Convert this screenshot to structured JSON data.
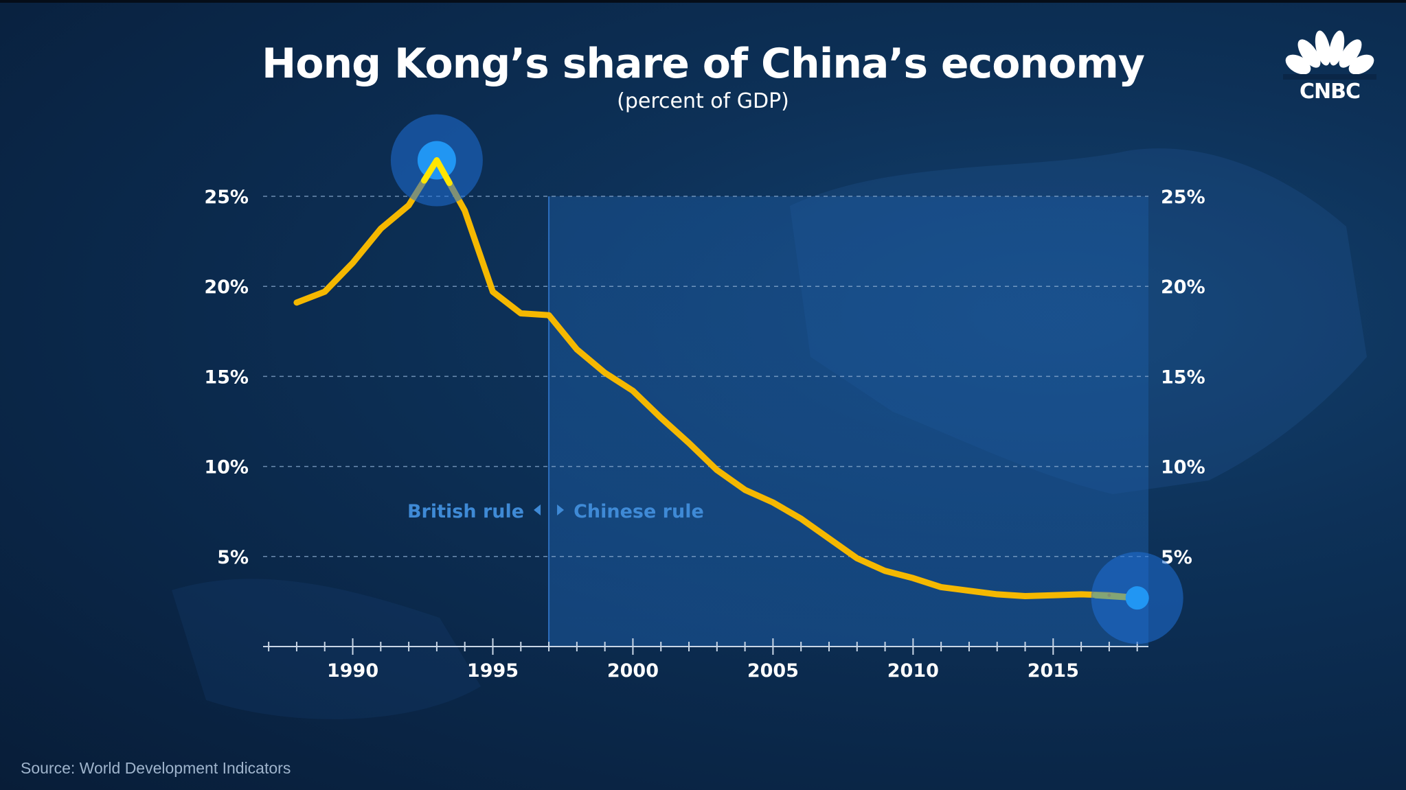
{
  "chart_data": {
    "type": "line",
    "title": "Hong Kong’s share of China’s economy",
    "subtitle": "(percent of GDP)",
    "xlabel": "",
    "ylabel": "",
    "xlim": [
      1986.8,
      2018.4
    ],
    "ylim": [
      0,
      25
    ],
    "x_ticks": [
      1990,
      1995,
      2000,
      2005,
      2010,
      2015
    ],
    "y_ticks": [
      {
        "value": 5,
        "label": "5%"
      },
      {
        "value": 10,
        "label": "10%"
      },
      {
        "value": 15,
        "label": "15%"
      },
      {
        "value": 20,
        "label": "20%"
      },
      {
        "value": 25,
        "label": "25%"
      }
    ],
    "grid": "horizontal dashed",
    "dual_y_axis": true,
    "shaded_region": {
      "from": 1997,
      "to": 2018.4
    },
    "region_labels": {
      "left": "British rule",
      "right": "Chinese rule"
    },
    "divider_x": 1997,
    "highlights": [
      {
        "x": 1993,
        "y": 27.0
      },
      {
        "x": 2018,
        "y": 2.7
      }
    ],
    "series": [
      {
        "color": "#f5b800",
        "x": [
          1988,
          1989,
          1990,
          1991,
          1992,
          1993,
          1994,
          1995,
          1996,
          1997,
          1998,
          1999,
          2000,
          2001,
          2002,
          2003,
          2004,
          2005,
          2006,
          2007,
          2008,
          2009,
          2010,
          2011,
          2012,
          2013,
          2014,
          2015,
          2016,
          2017,
          2018
        ],
        "values": [
          19.1,
          19.7,
          21.3,
          23.2,
          24.5,
          27.0,
          24.2,
          19.7,
          18.5,
          18.4,
          16.5,
          15.2,
          14.2,
          12.7,
          11.3,
          9.8,
          8.7,
          8.0,
          7.1,
          6.0,
          4.9,
          4.2,
          3.8,
          3.3,
          3.1,
          2.9,
          2.8,
          2.85,
          2.9,
          2.85,
          2.7
        ]
      }
    ]
  },
  "brand": {
    "name": "CNBC"
  },
  "source": "Source: World Development Indicators",
  "colors": {
    "background": "#0a2647",
    "line": "#f5b800",
    "line_highlight": "#ffe600",
    "highlight_dot": "#2196f3",
    "region_label": "#3f8ad6"
  }
}
